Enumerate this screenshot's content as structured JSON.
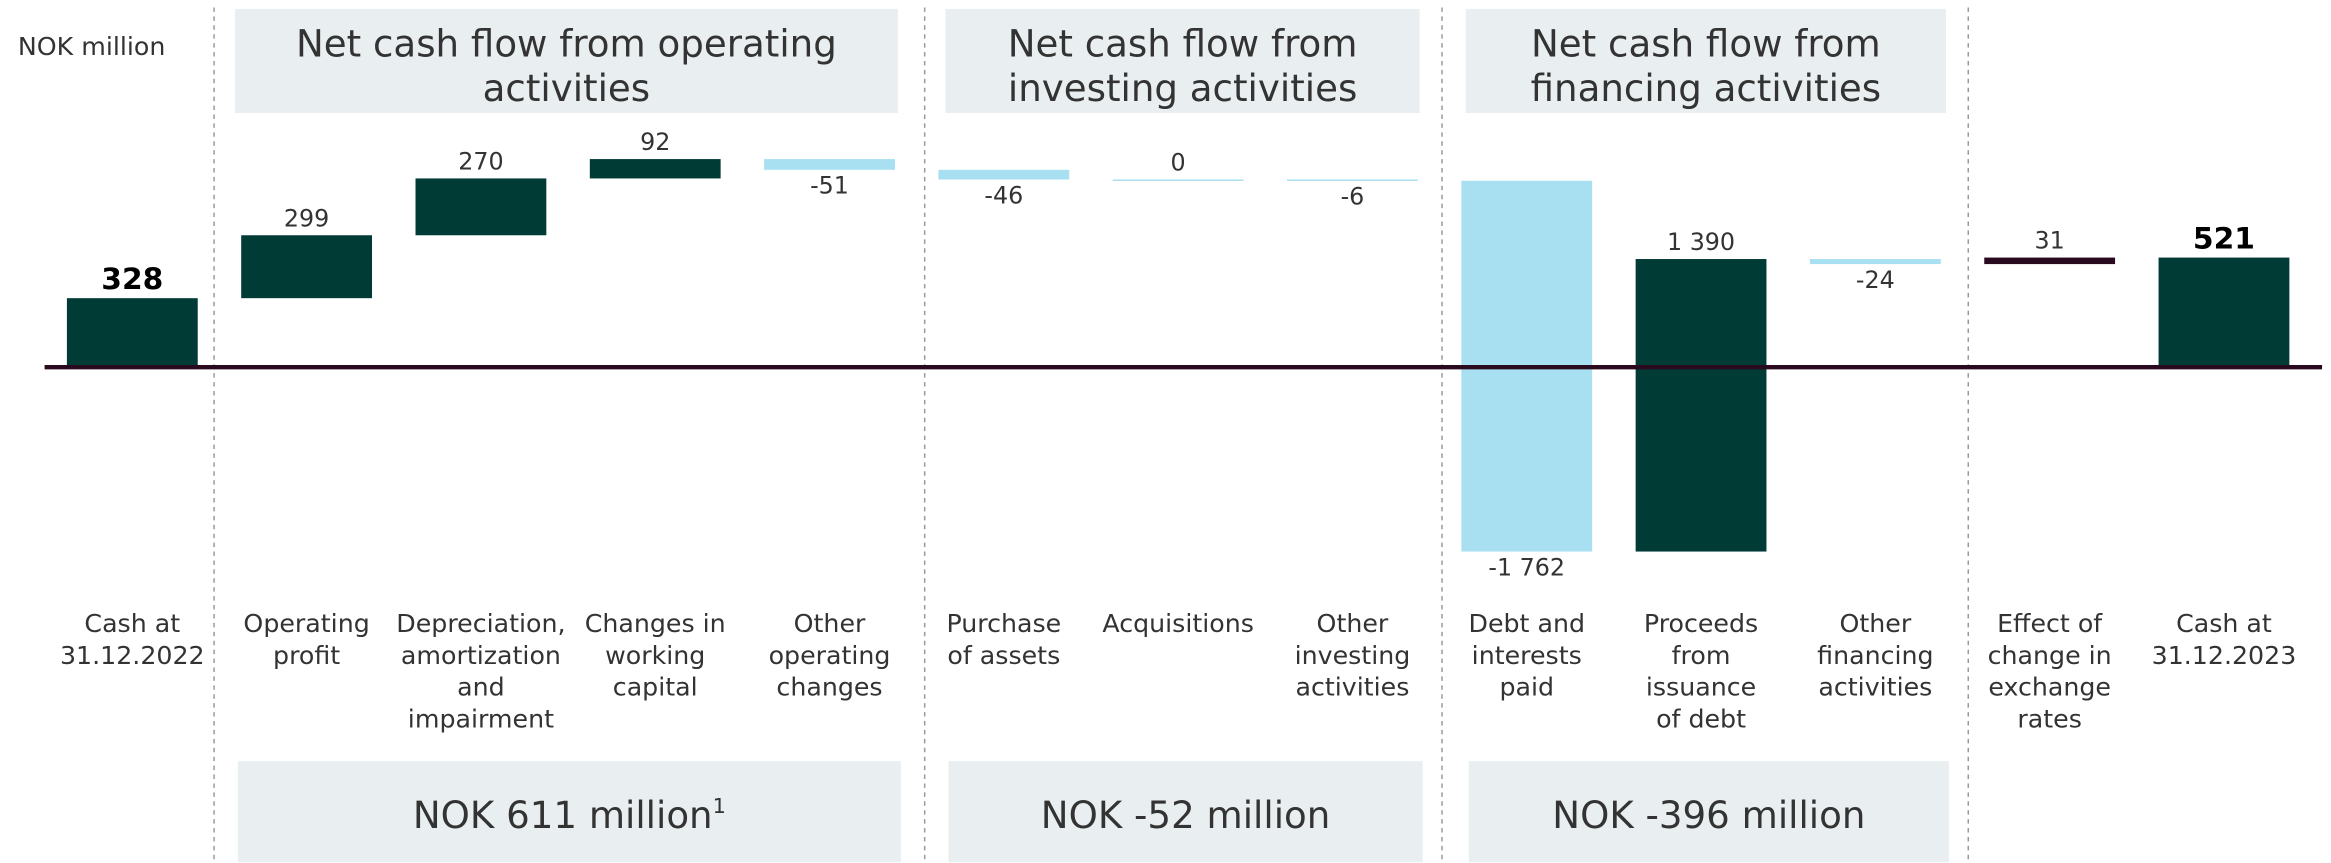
{
  "chart_data": {
    "type": "waterfall",
    "unit_label": "NOK million",
    "categories": [
      "Cash at\n31.12.2022",
      "Operating\nprofit",
      "Depreciation,\namortization\nand\nimpairment",
      "Changes in\nworking\ncapital",
      "Other\noperating\nchanges",
      "Purchase\nof assets",
      "Acquisitions",
      "Other\ninvesting\nactivities",
      "Debt and\ninterests\npaid",
      "Proceeds\nfrom\nissuance\nof debt",
      "Other\nfinancing\nactivities",
      "Effect of\nchange in\nexchange\nrates",
      "Cash at\n31.12.2023"
    ],
    "values": [
      328,
      299,
      270,
      92,
      -51,
      -46,
      0,
      -6,
      -1762,
      1390,
      -24,
      31,
      521
    ],
    "value_labels": [
      "328",
      "299",
      "270",
      "92",
      "-51",
      "-46",
      "0",
      "-6",
      "-1 762",
      "1 390",
      "-24",
      "31",
      "521"
    ],
    "colors": [
      "#003b36",
      "#003b36",
      "#003b36",
      "#003b36",
      "#a8e0f2",
      "#a8e0f2",
      "#a8e0f2",
      "#a8e0f2",
      "#a8e0f2",
      "#003b36",
      "#a8e0f2",
      "#2a0a1e",
      "#003b36"
    ],
    "total_indices": [
      0,
      12
    ],
    "groups": [
      {
        "title": "Net cash flow from operating\nactivities",
        "summary": "NOK 611 million",
        "footnote_marker": "1"
      },
      {
        "title": "Net cash flow from\ninvesting activities",
        "summary": "NOK -52 million"
      },
      {
        "title": "Net cash flow from\nfinancing activities",
        "summary": "NOK -396 million"
      }
    ]
  }
}
